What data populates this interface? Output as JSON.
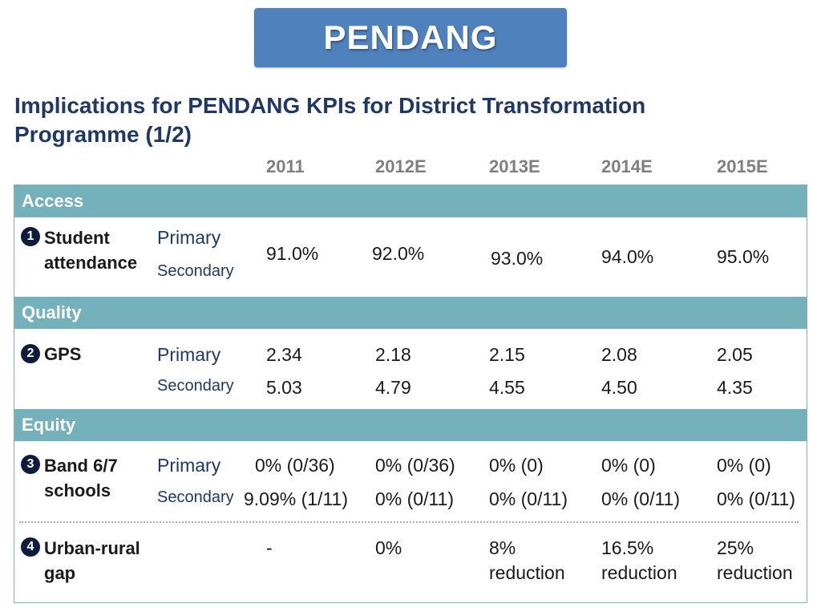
{
  "banner": {
    "label": "PENDANG"
  },
  "title": "Implications for PENDANG KPIs for District Transformation Programme (1/2)",
  "years": [
    "2011",
    "2012E",
    "2013E",
    "2014E",
    "2015E"
  ],
  "sections": {
    "access": "Access",
    "quality": "Quality",
    "equity": "Equity"
  },
  "levels": {
    "primary": "Primary",
    "secondary": "Secondary"
  },
  "kpis": [
    {
      "number": "1",
      "name": "Student attendance",
      "values": [
        "91.0%",
        "92.0%",
        "93.0%",
        "94.0%",
        "95.0%"
      ]
    },
    {
      "number": "2",
      "name": "GPS",
      "primary": [
        "2.34",
        "2.18",
        "2.15",
        "2.08",
        "2.05"
      ],
      "secondary": [
        "5.03",
        "4.79",
        "4.55",
        "4.50",
        "4.35"
      ]
    },
    {
      "number": "3",
      "name": "Band 6/7 schools",
      "primary": [
        "0% (0/36)",
        "0% (0/36)",
        "0% (0)",
        "0% (0)",
        "0% (0)"
      ],
      "secondary": [
        "9.09% (1/11)",
        "0% (0/11)",
        "0% (0/11)",
        "0% (0/11)",
        "0% (0/11)"
      ]
    },
    {
      "number": "4",
      "name": "Urban-rural gap",
      "values": [
        "-",
        "0%",
        "8% reduction",
        "16.5% reduction",
        "25% reduction"
      ]
    }
  ]
}
